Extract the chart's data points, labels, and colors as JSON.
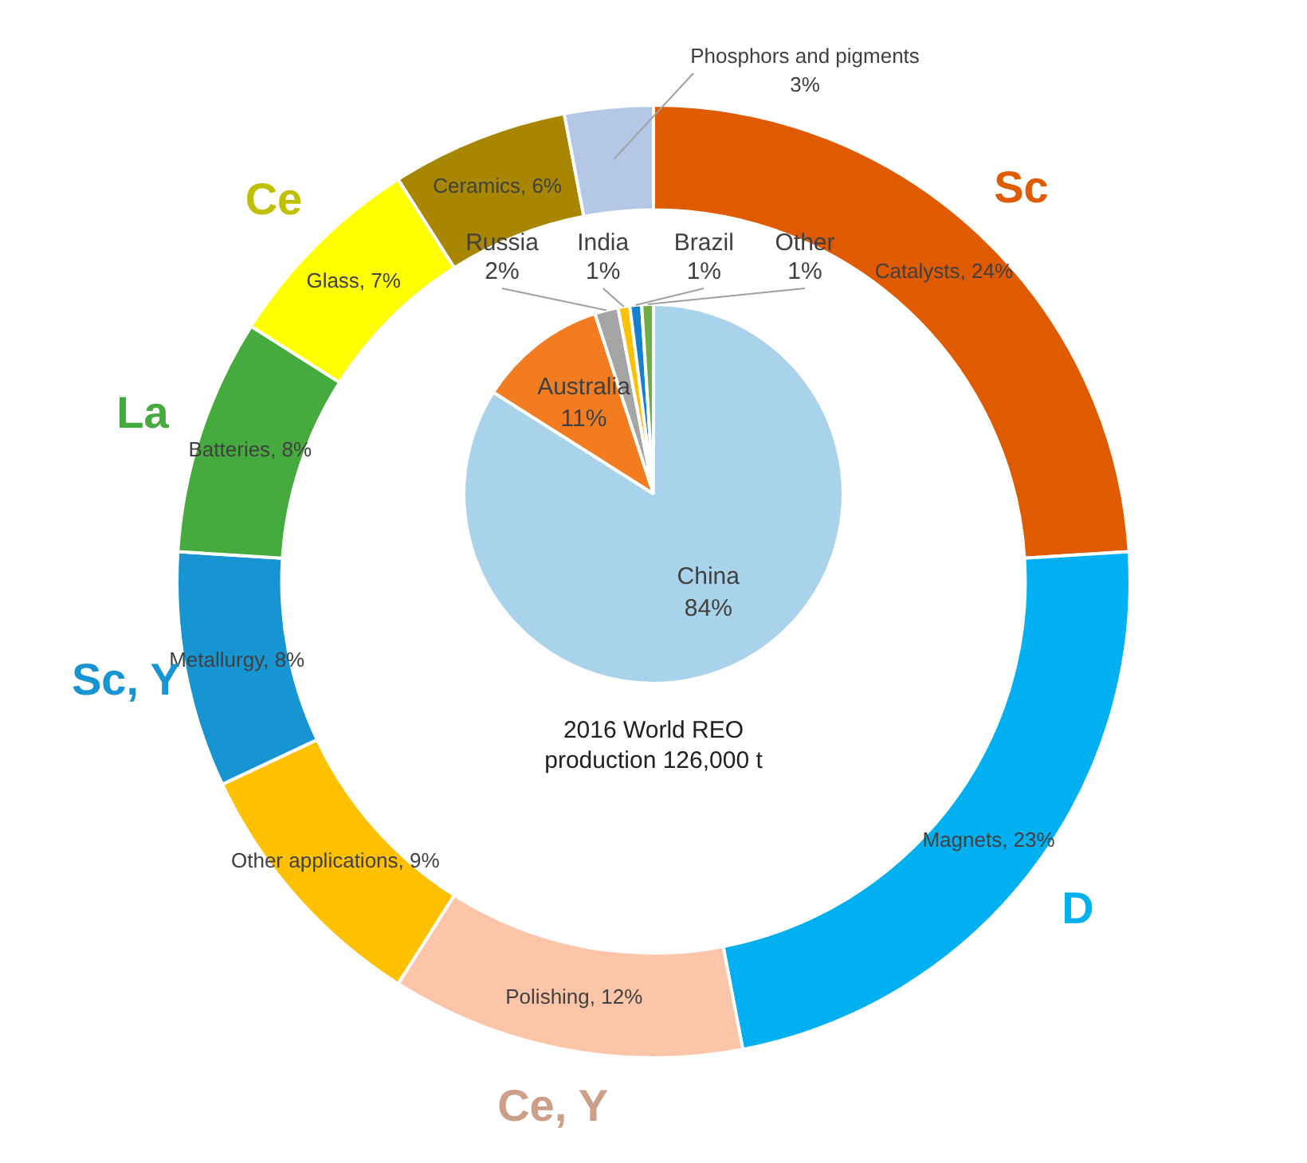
{
  "chart_data": [
    {
      "type": "donut",
      "categories": [
        "Catalysts",
        "Magnets",
        "Polishing",
        "Other applications",
        "Metallurgy",
        "Batteries",
        "Glass",
        "Ceramics",
        "Phosphors and pigments"
      ],
      "values": [
        24,
        23,
        12,
        9,
        8,
        8,
        7,
        6,
        3
      ],
      "value_labels": [
        "24%",
        "23%",
        "12%",
        "9%",
        "8%",
        "8%",
        "7%",
        "6%",
        "3%"
      ],
      "colors": [
        "#e05a00",
        "#00b0f0",
        "#fcc5a8",
        "#ffc000",
        "#1794d2",
        "#46ab3e",
        "#ffff00",
        "#a88600",
        "#b4c7e7"
      ],
      "annotations": [
        {
          "text": "Sc",
          "x": "Catalysts"
        },
        {
          "text": "D",
          "x": "Magnets"
        },
        {
          "text": "Ce, Y",
          "x": "Polishing"
        },
        {
          "text": "Sc, Y",
          "x": "Metallurgy"
        },
        {
          "text": "La",
          "x": "Batteries"
        },
        {
          "text": "Ce",
          "x": "Glass"
        }
      ],
      "legend": false
    },
    {
      "type": "pie",
      "categories": [
        "China",
        "Australia",
        "Russia",
        "India",
        "Brazil",
        "Other"
      ],
      "values": [
        84,
        11,
        2,
        1,
        1,
        1
      ],
      "value_labels": [
        "84%",
        "11%",
        "2%",
        "1%",
        "1%",
        "1%"
      ],
      "colors": [
        "#a9d3ea",
        "#f47c20",
        "#a5a5a5",
        "#ffc000",
        "#1580d0",
        "#70ad47"
      ],
      "annotations": [
        "2016 World REO production 126,000 t"
      ],
      "legend": false
    }
  ]
}
